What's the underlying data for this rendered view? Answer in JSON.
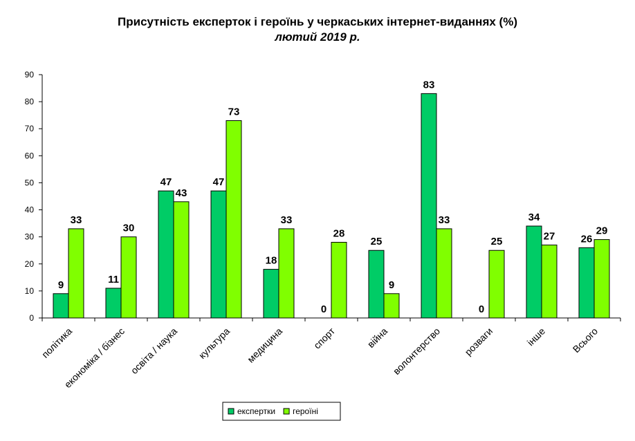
{
  "chart_data": {
    "type": "bar",
    "title": "Присутність експерток і героїнь у черкаських інтернет-виданнях (%)",
    "subtitle": "лютий 2019 р.",
    "categories": [
      "політика",
      "економіка / бізнес",
      "освіта / наука",
      "культура",
      "медицина",
      "спорт",
      "війна",
      "волонтерство",
      "розваги",
      "інше",
      "Всього"
    ],
    "series": [
      {
        "name": "експертки",
        "color": "#00cc66",
        "values": [
          9,
          11,
          47,
          47,
          18,
          0,
          25,
          83,
          0,
          34,
          26
        ]
      },
      {
        "name": "героїні",
        "color": "#80ff00",
        "values": [
          33,
          30,
          43,
          73,
          33,
          28,
          9,
          33,
          25,
          27,
          29
        ]
      }
    ],
    "ylim": [
      0,
      90
    ],
    "yticks": [
      0,
      10,
      20,
      30,
      40,
      50,
      60,
      70,
      80,
      90
    ],
    "grid": false,
    "legend": "bottom"
  }
}
